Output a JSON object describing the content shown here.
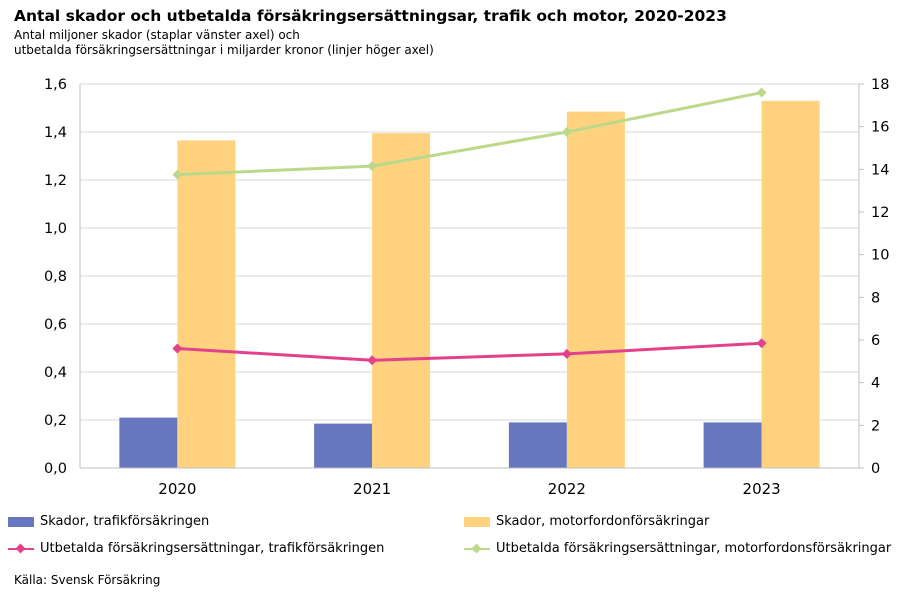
{
  "header": {
    "title": "Antal skador och utbetalda försäkringsersättningsar, trafik och motor, 2020-2023",
    "subtitle_line1": "Antal miljoner skador (staplar vänster axel) och",
    "subtitle_line2": "utbetalda försäkringsersättningar i miljarder kronor (linjer höger axel)"
  },
  "source": "Källa: Svensk Försäkring",
  "colors": {
    "bar_traffic": "#6677bf",
    "bar_motor": "#ffd27f",
    "line_traffic": "#e3428a",
    "line_motor": "#bcd98a",
    "grid": "#d9d9d9",
    "axis": "#bfbfbf"
  },
  "chart_data": {
    "type": "bar",
    "categories": [
      "2020",
      "2021",
      "2022",
      "2023"
    ],
    "y_left": {
      "lim": [
        0,
        1.6
      ],
      "ticks": [
        "0,0",
        "0,2",
        "0,4",
        "0,6",
        "0,8",
        "1,0",
        "1,2",
        "1,4",
        "1,6"
      ]
    },
    "y_right": {
      "lim": [
        0,
        18
      ],
      "ticks": [
        "0",
        "2",
        "4",
        "6",
        "8",
        "10",
        "12",
        "14",
        "16",
        "18"
      ]
    },
    "grid": true,
    "legend_position": "bottom",
    "series": [
      {
        "name": "Skador, trafikförsäkringen",
        "type": "bar",
        "axis": "left",
        "values": [
          0.21,
          0.185,
          0.19,
          0.19
        ]
      },
      {
        "name": "Skador, motorfordonförsäkringar",
        "type": "bar",
        "axis": "left",
        "values": [
          1.365,
          1.395,
          1.485,
          1.53
        ]
      },
      {
        "name": "Utbetalda försäkringsersättningar, trafikförsäkringen",
        "type": "line",
        "axis": "right",
        "values": [
          5.6,
          5.05,
          5.35,
          5.85
        ]
      },
      {
        "name": "Utbetalda försäkringsersättningar, motorfordonsförsäkringar",
        "type": "line",
        "axis": "right",
        "values": [
          13.75,
          14.15,
          15.75,
          17.6
        ]
      }
    ]
  }
}
